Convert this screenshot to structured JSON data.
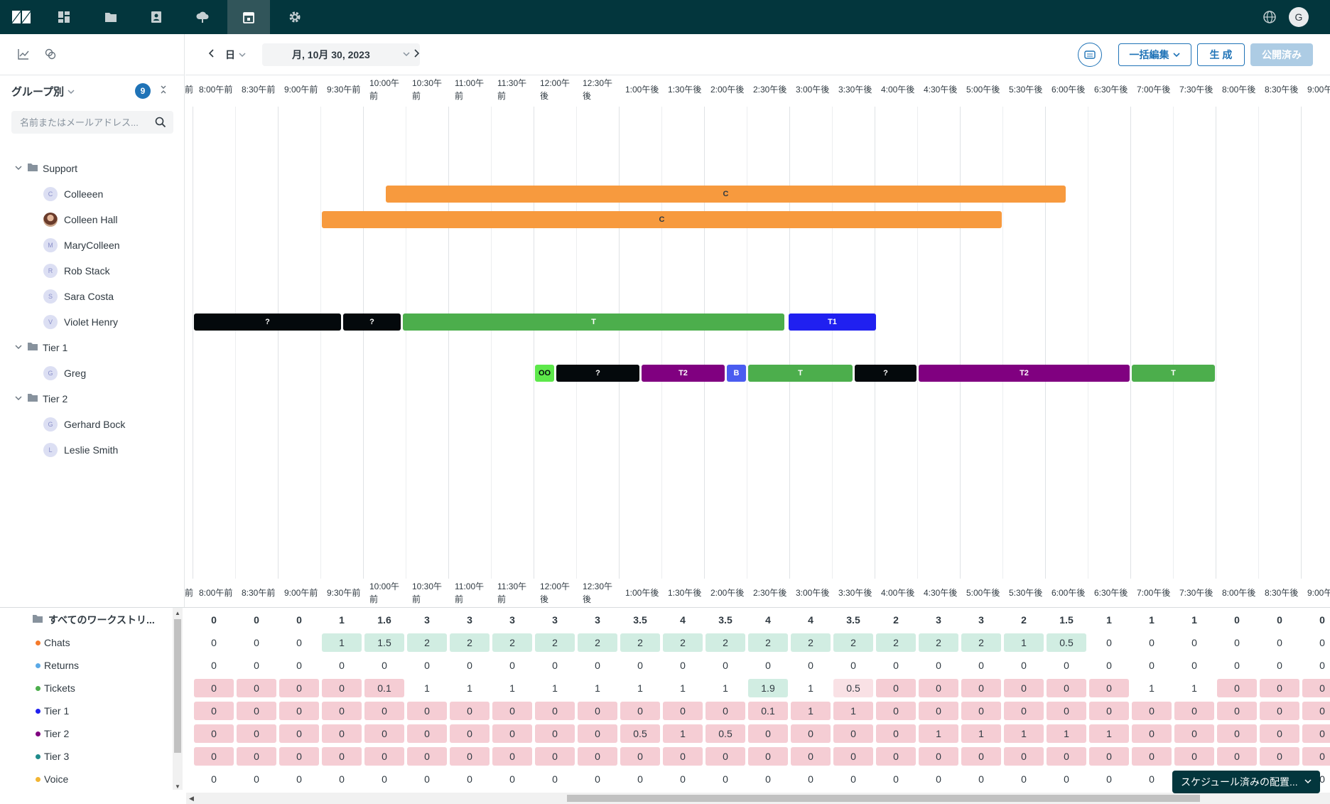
{
  "topbar": {
    "icons": [
      "zendesk-logo-icon",
      "dashboard-icon",
      "folder-icon",
      "contacts-icon",
      "cloud-icon",
      "schedule-icon",
      "settings-icon"
    ],
    "avatar_initial": "G"
  },
  "sidebar": {
    "group_by_label": "グループ別",
    "count": "9",
    "search_placeholder": "名前またはメールアドレス...",
    "tree": [
      {
        "type": "group",
        "label": "Support"
      },
      {
        "type": "user",
        "label": "Colleeen",
        "initial": "C"
      },
      {
        "type": "user",
        "label": "Colleen Hall",
        "initial": "",
        "photo": true
      },
      {
        "type": "user",
        "label": "MaryColleen",
        "initial": "M"
      },
      {
        "type": "user",
        "label": "Rob Stack",
        "initial": "R"
      },
      {
        "type": "user",
        "label": "Sara Costa",
        "initial": "S"
      },
      {
        "type": "user",
        "label": "Violet Henry",
        "initial": "V"
      },
      {
        "type": "group",
        "label": "Tier 1"
      },
      {
        "type": "user",
        "label": "Greg",
        "initial": "G"
      },
      {
        "type": "group",
        "label": "Tier 2"
      },
      {
        "type": "user",
        "label": "Gerhard Bock",
        "initial": "G"
      },
      {
        "type": "user",
        "label": "Leslie Smith",
        "initial": "L"
      }
    ]
  },
  "header": {
    "view_mode": "日",
    "date": "月, 10月 30, 2023",
    "bulk_edit_label": "一括編集",
    "generate_label": "生 成",
    "published_label": "公開済み"
  },
  "timeline": {
    "partial_label": "前",
    "times": [
      "8:00午前",
      "8:30午前",
      "9:00午前",
      "9:30午前",
      "10:00午前",
      "10:30午前",
      "11:00午前",
      "11:30午前",
      "12:00午後",
      "12:30午後",
      "1:00午後",
      "1:30午後",
      "2:00午後",
      "2:30午後",
      "3:00午後",
      "3:30午後",
      "4:00午後",
      "4:30午後",
      "5:00午後",
      "5:30午後",
      "6:00午後",
      "6:30午後",
      "7:00午後",
      "7:30午後",
      "8:00午後",
      "8:30午後",
      "9:00午"
    ]
  },
  "shifts": [
    {
      "row": 1,
      "label": "C",
      "start": 4.5,
      "end": 20.5,
      "color": "#f79a3e",
      "text_color": "#2f3941"
    },
    {
      "row": 2,
      "label": "C",
      "start": 3,
      "end": 19,
      "color": "#f79a3e",
      "text_color": "#2f3941"
    },
    {
      "row": 6,
      "label": "?",
      "start": 0,
      "end": 3.5,
      "color": "#04090c",
      "text_color": "#ffffff"
    },
    {
      "row": 6,
      "label": "?",
      "start": 3.5,
      "end": 4.9,
      "color": "#04090c",
      "text_color": "#ffffff"
    },
    {
      "row": 6,
      "label": "T",
      "start": 4.9,
      "end": 13.9,
      "color": "#4cae4c",
      "text_color": "#ffffff"
    },
    {
      "row": 6,
      "label": "T1",
      "start": 13.95,
      "end": 16.05,
      "color": "#2020f0",
      "text_color": "#ffffff"
    },
    {
      "row": 8,
      "label": "OO",
      "start": 8.0,
      "end": 8.5,
      "color": "#5de84a",
      "text_color": "#04090c"
    },
    {
      "row": 8,
      "label": "?",
      "start": 8.5,
      "end": 10.5,
      "color": "#04090c",
      "text_color": "#ffffff"
    },
    {
      "row": 8,
      "label": "T2",
      "start": 10.5,
      "end": 12.5,
      "color": "#800080",
      "text_color": "#ffffff"
    },
    {
      "row": 8,
      "label": "B",
      "start": 12.5,
      "end": 13.0,
      "color": "#4a5cf0",
      "text_color": "#ffffff"
    },
    {
      "row": 8,
      "label": "T",
      "start": 13.0,
      "end": 15.5,
      "color": "#4cae4c",
      "text_color": "#ffffff"
    },
    {
      "row": 8,
      "label": "?",
      "start": 15.5,
      "end": 17.0,
      "color": "#04090c",
      "text_color": "#ffffff"
    },
    {
      "row": 8,
      "label": "T2",
      "start": 17.0,
      "end": 22.0,
      "color": "#800080",
      "text_color": "#ffffff"
    },
    {
      "row": 8,
      "label": "T",
      "start": 22.0,
      "end": 24.0,
      "color": "#4cae4c",
      "text_color": "#ffffff"
    }
  ],
  "workstreams": {
    "all_label": "すべてのワークストリ...",
    "rows": [
      {
        "label": "Chats",
        "dot": "#f57a2b"
      },
      {
        "label": "Returns",
        "dot": "#5aa9e6"
      },
      {
        "label": "Tickets",
        "dot": "#4cae4c"
      },
      {
        "label": "Tier 1",
        "dot": "#2020f0"
      },
      {
        "label": "Tier 2",
        "dot": "#800080"
      },
      {
        "label": "Tier 3",
        "dot": "#1f8b8b"
      },
      {
        "label": "Voice",
        "dot": "#f2b533"
      }
    ],
    "totals": [
      "0",
      "0",
      "0",
      "1",
      "1.6",
      "3",
      "3",
      "3",
      "3",
      "3",
      "3.5",
      "4",
      "3.5",
      "4",
      "4",
      "3.5",
      "2",
      "3",
      "3",
      "2",
      "1.5",
      "1",
      "1",
      "1",
      "0",
      "0",
      "0"
    ],
    "values": [
      [
        "0",
        "0",
        "0",
        "1",
        "1.5",
        "2",
        "2",
        "2",
        "2",
        "2",
        "2",
        "2",
        "2",
        "2",
        "2",
        "2",
        "2",
        "2",
        "2",
        "1",
        "0.5",
        "0",
        "0",
        "0",
        "0",
        "0",
        "0"
      ],
      [
        "0",
        "0",
        "0",
        "0",
        "0",
        "0",
        "0",
        "0",
        "0",
        "0",
        "0",
        "0",
        "0",
        "0",
        "0",
        "0",
        "0",
        "0",
        "0",
        "0",
        "0",
        "0",
        "0",
        "0",
        "0",
        "0",
        "0"
      ],
      [
        "0",
        "0",
        "0",
        "0",
        "0.1",
        "1",
        "1",
        "1",
        "1",
        "1",
        "1",
        "1",
        "1",
        "1.9",
        "1",
        "0.5",
        "0",
        "0",
        "0",
        "0",
        "0",
        "0",
        "1",
        "1",
        "0",
        "0",
        "0"
      ],
      [
        "0",
        "0",
        "0",
        "0",
        "0",
        "0",
        "0",
        "0",
        "0",
        "0",
        "0",
        "0",
        "0",
        "0.1",
        "1",
        "1",
        "0",
        "0",
        "0",
        "0",
        "0",
        "0",
        "0",
        "0",
        "0",
        "0",
        "0"
      ],
      [
        "0",
        "0",
        "0",
        "0",
        "0",
        "0",
        "0",
        "0",
        "0",
        "0",
        "0.5",
        "1",
        "0.5",
        "0",
        "0",
        "0",
        "0",
        "1",
        "1",
        "1",
        "1",
        "1",
        "0",
        "0",
        "0",
        "0",
        "0"
      ],
      [
        "0",
        "0",
        "0",
        "0",
        "0",
        "0",
        "0",
        "0",
        "0",
        "0",
        "0",
        "0",
        "0",
        "0",
        "0",
        "0",
        "0",
        "0",
        "0",
        "0",
        "0",
        "0",
        "0",
        "0",
        "0",
        "0",
        "0"
      ],
      [
        "0",
        "0",
        "0",
        "0",
        "0",
        "0",
        "0",
        "0",
        "0",
        "0",
        "0",
        "0",
        "0",
        "0",
        "0",
        "0",
        "0",
        "0",
        "0",
        "0",
        "0",
        "0",
        "0",
        "0",
        "0",
        "0",
        "0"
      ]
    ],
    "styles": [
      [
        "n",
        "n",
        "n",
        "g",
        "g",
        "g",
        "g",
        "g",
        "g",
        "g",
        "g",
        "g",
        "g",
        "g",
        "g",
        "g",
        "g",
        "g",
        "g",
        "g",
        "g",
        "n",
        "n",
        "n",
        "n",
        "n",
        "n"
      ],
      [
        "n",
        "n",
        "n",
        "n",
        "n",
        "n",
        "n",
        "n",
        "n",
        "n",
        "n",
        "n",
        "n",
        "n",
        "n",
        "n",
        "n",
        "n",
        "n",
        "n",
        "n",
        "n",
        "n",
        "n",
        "n",
        "n",
        "n"
      ],
      [
        "r",
        "r",
        "r",
        "r",
        "r",
        "n",
        "n",
        "n",
        "n",
        "n",
        "n",
        "n",
        "n",
        "g",
        "n",
        "p",
        "r",
        "r",
        "r",
        "r",
        "r",
        "r",
        "n",
        "n",
        "r",
        "r",
        "r"
      ],
      [
        "r",
        "r",
        "r",
        "r",
        "r",
        "r",
        "r",
        "r",
        "r",
        "r",
        "r",
        "r",
        "r",
        "r",
        "r",
        "r",
        "r",
        "r",
        "r",
        "r",
        "r",
        "r",
        "r",
        "r",
        "r",
        "r",
        "r"
      ],
      [
        "r",
        "r",
        "r",
        "r",
        "r",
        "r",
        "r",
        "r",
        "r",
        "r",
        "r",
        "r",
        "r",
        "r",
        "r",
        "r",
        "r",
        "r",
        "r",
        "r",
        "r",
        "r",
        "r",
        "r",
        "r",
        "r",
        "r"
      ],
      [
        "r",
        "r",
        "r",
        "r",
        "r",
        "r",
        "r",
        "r",
        "r",
        "r",
        "r",
        "r",
        "r",
        "r",
        "r",
        "r",
        "r",
        "r",
        "r",
        "r",
        "r",
        "r",
        "r",
        "r",
        "r",
        "r",
        "r"
      ],
      [
        "n",
        "n",
        "n",
        "n",
        "n",
        "n",
        "n",
        "n",
        "n",
        "n",
        "n",
        "n",
        "n",
        "n",
        "n",
        "n",
        "n",
        "n",
        "n",
        "n",
        "n",
        "n",
        "n",
        "n",
        "n",
        "n",
        "n"
      ]
    ]
  },
  "toast": {
    "label": "スケジュール済みの配置..."
  }
}
